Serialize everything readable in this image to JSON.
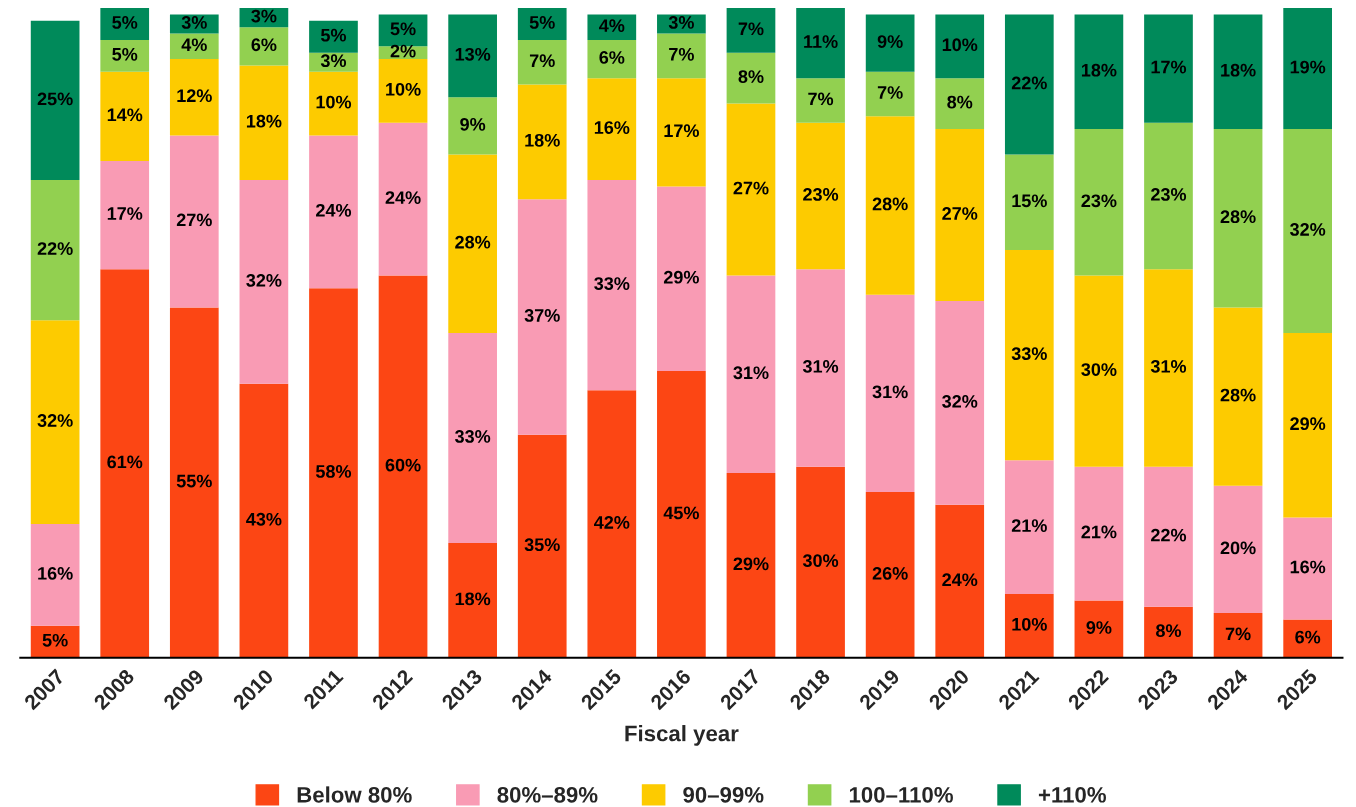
{
  "chart_data": {
    "type": "bar",
    "stacked": true,
    "xlabel": "Fiscal year",
    "legend": "bottom",
    "grid": false,
    "categories": [
      "2007",
      "2008",
      "2009",
      "2010",
      "2011",
      "2012",
      "2013",
      "2014",
      "2015",
      "2016",
      "2017",
      "2018",
      "2019",
      "2020",
      "2021",
      "2022",
      "2023",
      "2024",
      "2025"
    ],
    "series": [
      {
        "name": "Below 80%",
        "color": "#fc4614",
        "values": [
          5,
          61,
          55,
          43,
          58,
          60,
          18,
          35,
          42,
          45,
          29,
          30,
          26,
          24,
          10,
          9,
          8,
          7,
          6
        ],
        "value_labels": [
          "5%",
          "61%",
          "55%",
          "43%",
          "58%",
          "60%",
          "18%",
          "35%",
          "42%",
          "45%",
          "29%",
          "30%",
          "26%",
          "24%",
          "10%",
          "9%",
          "8%",
          "7%",
          "6%"
        ]
      },
      {
        "name": "80%–89%",
        "color": "#f99bb4",
        "values": [
          16,
          17,
          27,
          32,
          24,
          24,
          33,
          37,
          33,
          29,
          31,
          31,
          31,
          32,
          21,
          21,
          22,
          20,
          16
        ],
        "value_labels": [
          "16%",
          "17%",
          "27%",
          "32%",
          "24%",
          "24%",
          "33%",
          "37%",
          "33%",
          "29%",
          "31%",
          "31%",
          "31%",
          "32%",
          "21%",
          "21%",
          "22%",
          "20%",
          "16%"
        ]
      },
      {
        "name": "90–99%",
        "color": "#fdcb00",
        "values": [
          32,
          14,
          12,
          18,
          10,
          10,
          28,
          18,
          16,
          17,
          27,
          23,
          28,
          27,
          33,
          30,
          31,
          28,
          29
        ],
        "value_labels": [
          "32%",
          "14%",
          "12%",
          "18%",
          "10%",
          "10%",
          "28%",
          "18%",
          "16%",
          "17%",
          "27%",
          "23%",
          "28%",
          "27%",
          "33%",
          "30%",
          "31%",
          "28%",
          "29%"
        ]
      },
      {
        "name": "100–110%",
        "color": "#92d050",
        "values": [
          22,
          5,
          4,
          6,
          3,
          2,
          9,
          7,
          6,
          7,
          8,
          7,
          7,
          8,
          15,
          23,
          23,
          28,
          32
        ],
        "value_labels": [
          "22%",
          "5%",
          "4%",
          "6%",
          "3%",
          "2%",
          "9%",
          "7%",
          "6%",
          "7%",
          "8%",
          "7%",
          "7%",
          "8%",
          "15%",
          "23%",
          "23%",
          "28%",
          "32%"
        ]
      },
      {
        "name": "+110%",
        "color": "#008a5a",
        "values": [
          25,
          5,
          3,
          3,
          5,
          5,
          13,
          5,
          4,
          3,
          7,
          11,
          9,
          10,
          22,
          18,
          17,
          18,
          19
        ],
        "value_labels": [
          "25%",
          "5%",
          "3%",
          "3%",
          "5%",
          "5%",
          "13%",
          "5%",
          "4%",
          "3%",
          "7%",
          "11%",
          "9%",
          "10%",
          "22%",
          "18%",
          "17%",
          "18%",
          "19%"
        ]
      }
    ]
  }
}
